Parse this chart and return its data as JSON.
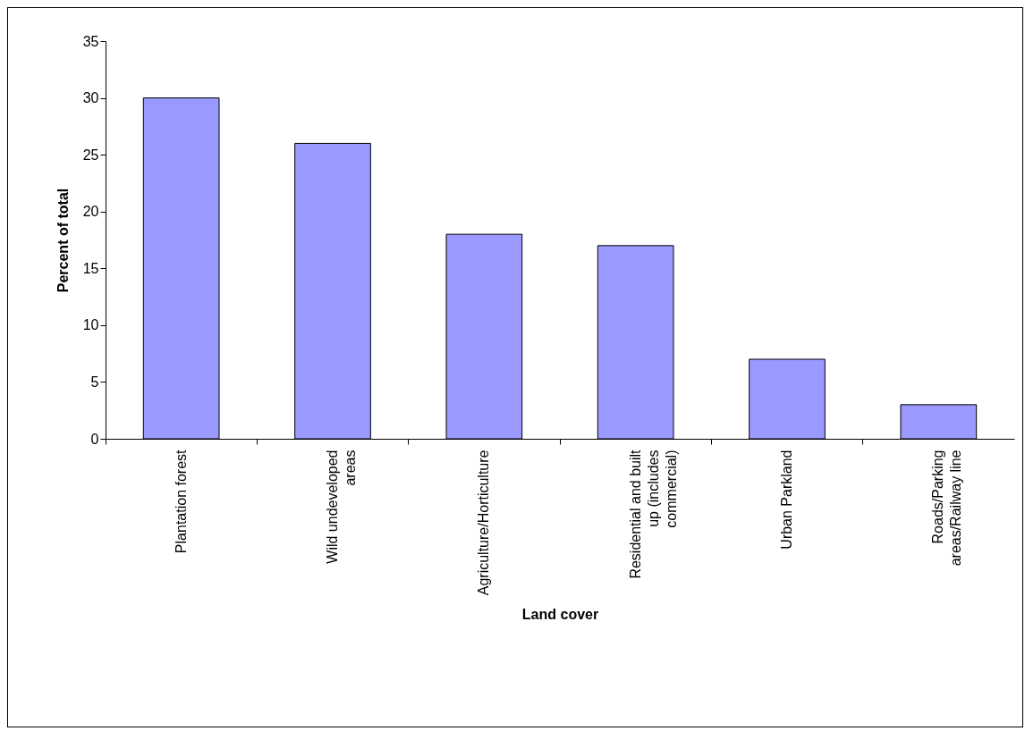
{
  "chart_data": {
    "type": "bar",
    "xlabel": "Land cover",
    "ylabel": "Percent of total",
    "categories": [
      "Plantation forest",
      "Wild undeveloped\nareas",
      "Agriculture/Horticulture",
      "Residential and built\nup (includes\ncommercial)",
      "Urban Parkland",
      "Roads/Parking\nareas/Railway line"
    ],
    "values": [
      30,
      26,
      18,
      17,
      7,
      3
    ],
    "color": "#9999ff",
    "ylim": [
      0,
      35
    ],
    "yticks": [
      0,
      5,
      10,
      15,
      20,
      25,
      30,
      35
    ],
    "grid": false
  }
}
